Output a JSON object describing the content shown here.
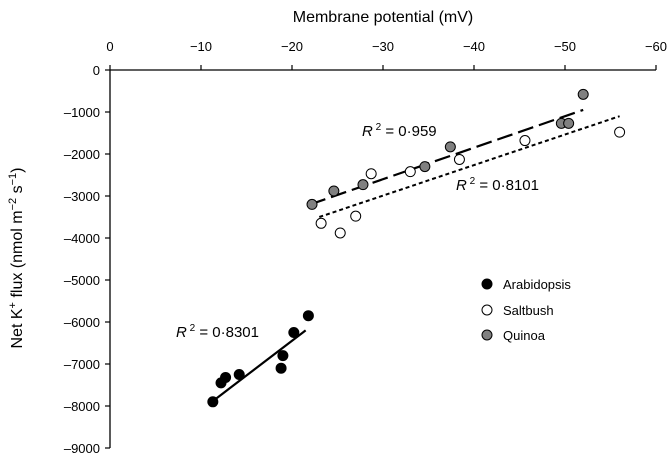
{
  "chart_data": {
    "type": "scatter",
    "xlabel": "Membrane potential (mV)",
    "ylabel_parts": {
      "main": "Net K",
      "sup1": "+",
      "rest": " flux (nmol m",
      "sup2": "−2",
      "rest2": " s",
      "sup3": "−1",
      "close": ")"
    },
    "xlim": [
      0,
      -60
    ],
    "ylim": [
      -9000,
      0
    ],
    "x_ticks": [
      {
        "value": 0,
        "label": "0"
      },
      {
        "value": -10,
        "label": "−10"
      },
      {
        "value": -20,
        "label": "−20"
      },
      {
        "value": -30,
        "label": "−30"
      },
      {
        "value": -40,
        "label": "−40"
      },
      {
        "value": -50,
        "label": "−50"
      },
      {
        "value": -60,
        "label": "−60"
      }
    ],
    "y_ticks": [
      {
        "value": 0,
        "label": "0"
      },
      {
        "value": -1000,
        "label": "–1000"
      },
      {
        "value": -2000,
        "label": "–2000"
      },
      {
        "value": -3000,
        "label": "–3000"
      },
      {
        "value": -4000,
        "label": "–4000"
      },
      {
        "value": -5000,
        "label": "–5000"
      },
      {
        "value": -6000,
        "label": "–6000"
      },
      {
        "value": -7000,
        "label": "–7000"
      },
      {
        "value": -8000,
        "label": "–8000"
      },
      {
        "value": -9000,
        "label": "–9000"
      }
    ],
    "series": [
      {
        "name": "Arabidopsis",
        "fill": "#000000",
        "line_style": "solid",
        "r2_label": "0·8301",
        "trend": [
          [
            -11.5,
            -7850
          ],
          [
            -21.5,
            -6200
          ]
        ],
        "points": [
          [
            -11.3,
            -7900
          ],
          [
            -12.2,
            -7450
          ],
          [
            -12.7,
            -7320
          ],
          [
            -14.2,
            -7250
          ],
          [
            -18.8,
            -7100
          ],
          [
            -19.0,
            -6800
          ],
          [
            -20.2,
            -6250
          ],
          [
            -21.8,
            -5850
          ]
        ]
      },
      {
        "name": "Saltbush",
        "fill": "#ffffff",
        "line_style": "dotted",
        "r2_label": "0·8101",
        "trend": [
          [
            -23,
            -3500
          ],
          [
            -56,
            -1100
          ]
        ],
        "points": [
          [
            -23.2,
            -3650
          ],
          [
            -25.3,
            -3880
          ],
          [
            -27.0,
            -3480
          ],
          [
            -28.7,
            -2470
          ],
          [
            -33.0,
            -2420
          ],
          [
            -38.4,
            -2130
          ],
          [
            -45.6,
            -1680
          ],
          [
            -56.0,
            -1480
          ]
        ]
      },
      {
        "name": "Quinoa",
        "fill": "#808080",
        "line_style": "dashed",
        "r2_label": "0·959",
        "trend": [
          [
            -22,
            -3200
          ],
          [
            -52,
            -950
          ]
        ],
        "points": [
          [
            -22.2,
            -3200
          ],
          [
            -24.6,
            -2880
          ],
          [
            -27.8,
            -2730
          ],
          [
            -34.6,
            -2300
          ],
          [
            -37.4,
            -1830
          ],
          [
            -49.6,
            -1270
          ],
          [
            -50.4,
            -1270
          ],
          [
            -52.0,
            -580
          ]
        ]
      }
    ],
    "legend": {
      "position": "lower-right",
      "entries": [
        "Arabidopsis",
        "Saltbush",
        "Quinoa"
      ]
    },
    "annotations": [
      {
        "series": "Quinoa",
        "prefix": "R",
        "sup": "2",
        "text": " = 0·959"
      },
      {
        "series": "Saltbush",
        "prefix": "R",
        "sup": "2",
        "text": " = 0·8101"
      },
      {
        "series": "Arabidopsis",
        "prefix": "R",
        "sup": "2",
        "text": " = 0·8301"
      }
    ]
  }
}
